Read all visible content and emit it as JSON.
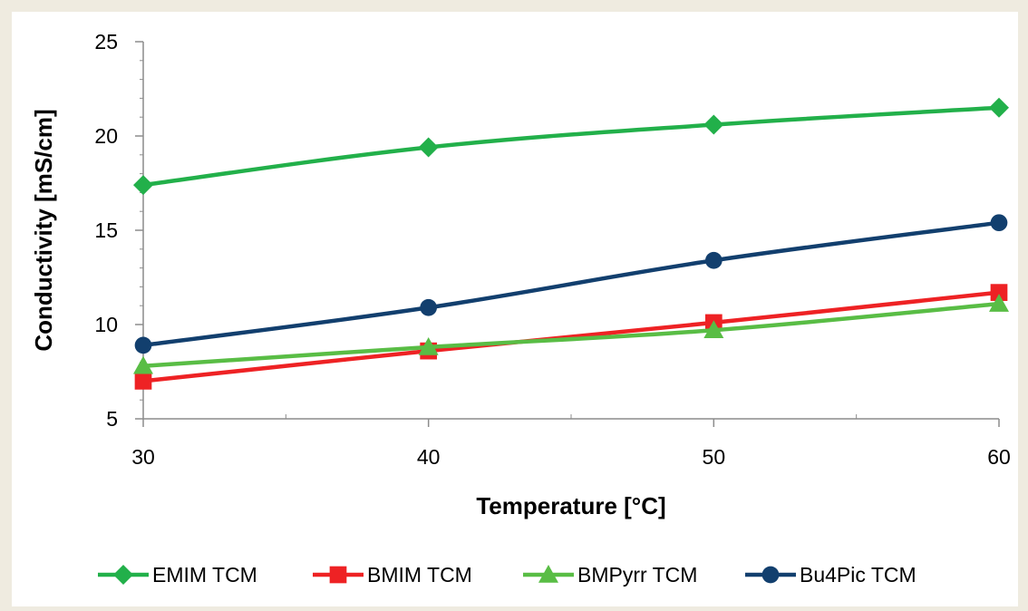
{
  "chart_data": {
    "type": "line",
    "title": "",
    "xlabel": "Temperature [°C]",
    "ylabel": "Conductivity [mS/cm]",
    "x": [
      30,
      40,
      50,
      60
    ],
    "xlim": [
      30,
      60
    ],
    "ylim": [
      5,
      25
    ],
    "xticks": [
      30,
      40,
      50,
      60
    ],
    "yticks": [
      5,
      10,
      15,
      20,
      25
    ],
    "grid": false,
    "legend_position": "bottom",
    "smooth": true,
    "series": [
      {
        "name": "EMIM TCM",
        "values": [
          17.4,
          19.4,
          20.6,
          21.5
        ],
        "color": "#22b04a",
        "marker": "diamond"
      },
      {
        "name": "BMIM TCM",
        "values": [
          7.0,
          8.6,
          10.1,
          11.7
        ],
        "color": "#ee2224",
        "marker": "square"
      },
      {
        "name": "BMPyrr TCM",
        "values": [
          7.8,
          8.8,
          9.7,
          11.1
        ],
        "color": "#59bd45",
        "marker": "triangle"
      },
      {
        "name": "Bu4Pic TCM",
        "values": [
          8.9,
          10.9,
          13.4,
          15.4
        ],
        "color": "#123f6e",
        "marker": "circle"
      }
    ]
  }
}
